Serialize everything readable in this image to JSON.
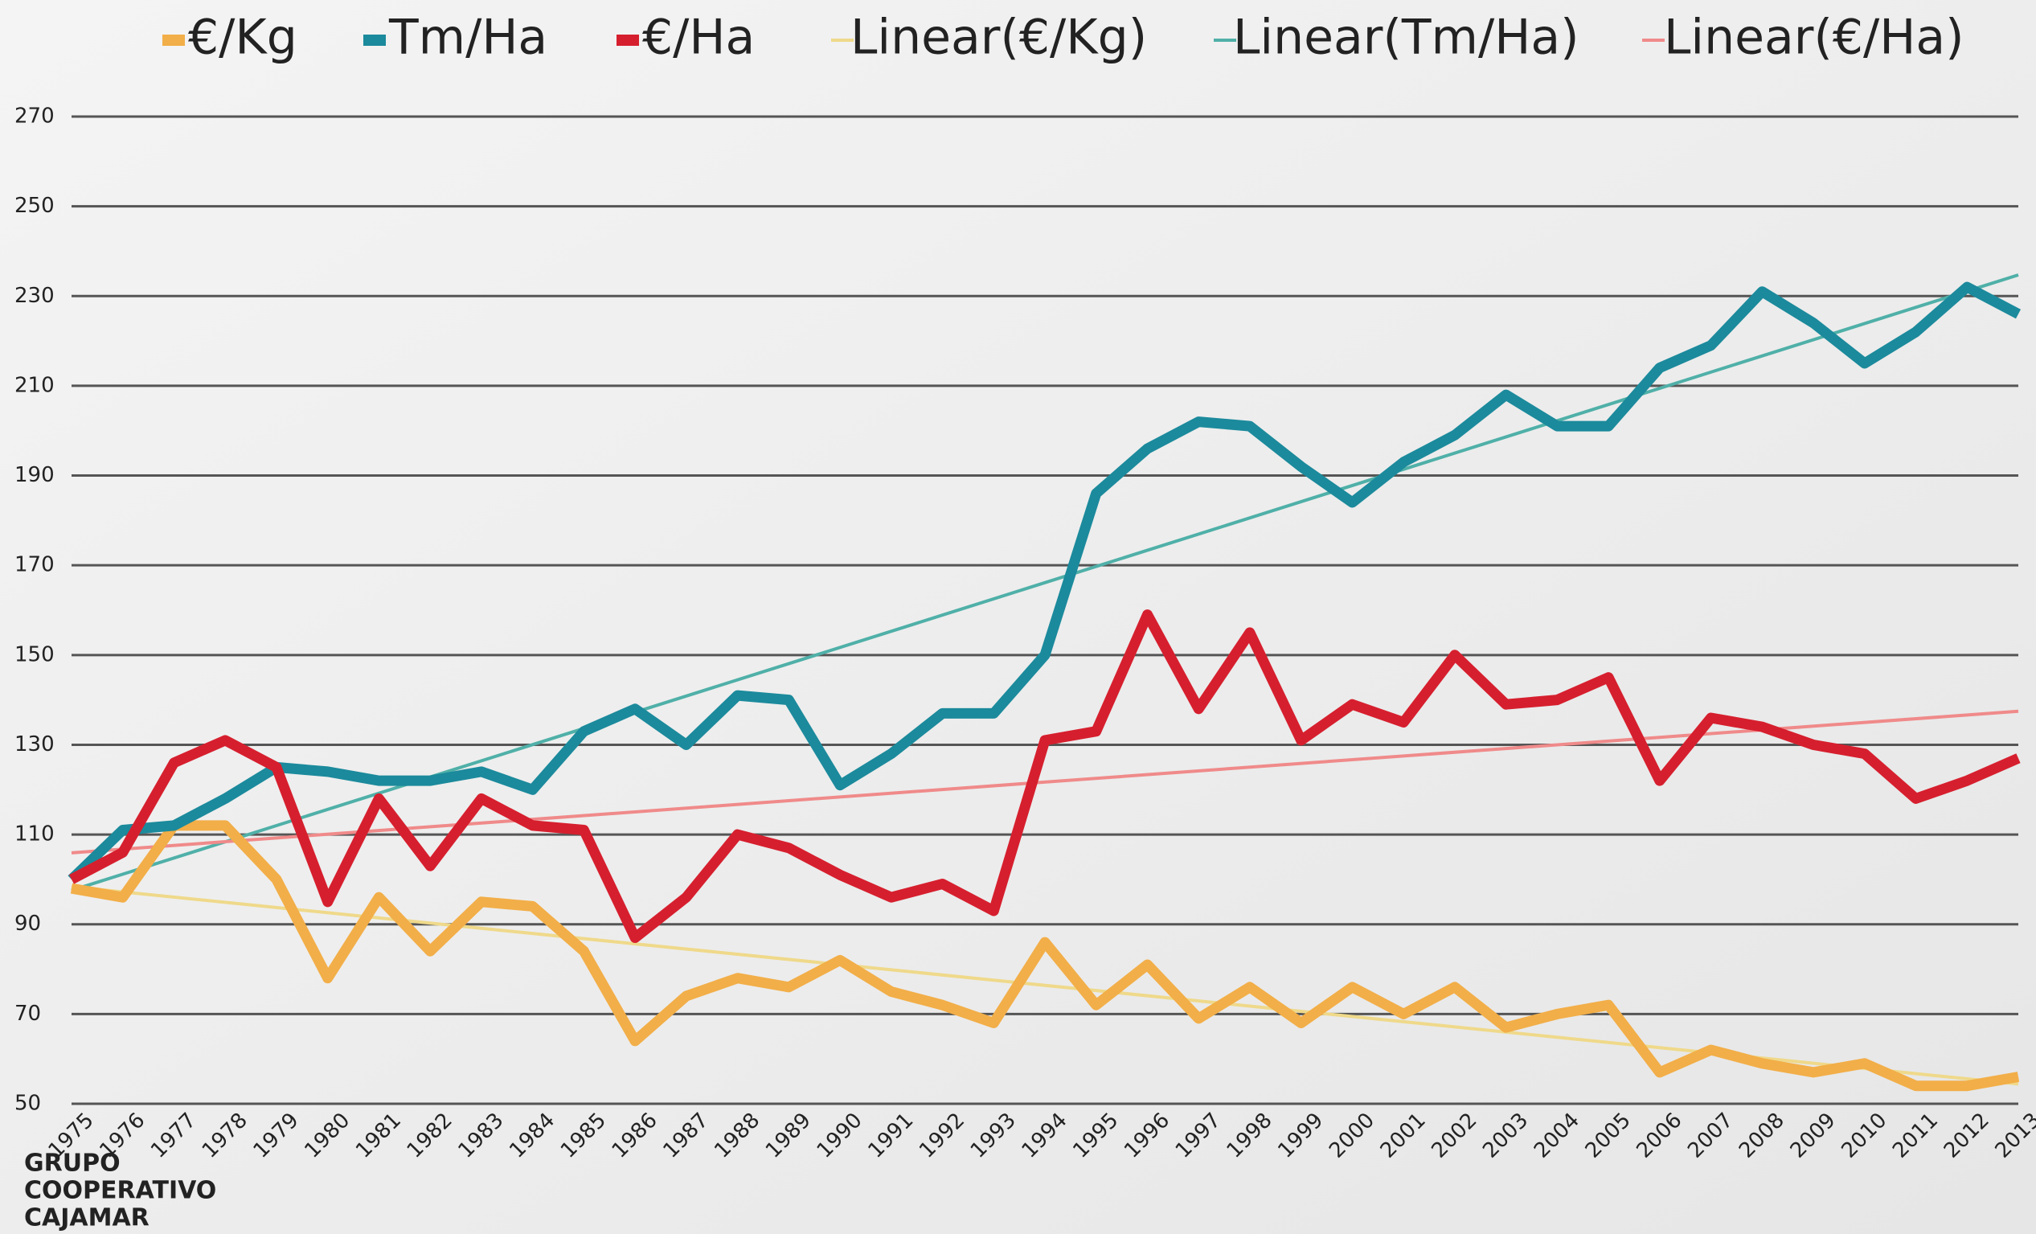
{
  "chart_data": {
    "type": "line",
    "categories": [
      "1975",
      "1976",
      "1977",
      "1978",
      "1979",
      "1980",
      "1981",
      "1982",
      "1983",
      "1984",
      "1985",
      "1986",
      "1987",
      "1988",
      "1989",
      "1990",
      "1991",
      "1992",
      "1993",
      "1994",
      "1995",
      "1996",
      "1997",
      "1998",
      "1999",
      "2000",
      "2001",
      "2002",
      "2003",
      "2004",
      "2005",
      "2006",
      "2007",
      "2008",
      "2009",
      "2010",
      "2011",
      "2012",
      "2013"
    ],
    "series": [
      {
        "name": "€/Kg",
        "color": "#f2ae48",
        "trendline": {
          "name": "Linear(€/Kg)",
          "color": "#efd98a"
        },
        "values": [
          98,
          96,
          112,
          112,
          100,
          78,
          96,
          84,
          95,
          94,
          84,
          64,
          74,
          78,
          76,
          82,
          75,
          72,
          68,
          86,
          72,
          81,
          69,
          76,
          68,
          76,
          70,
          76,
          67,
          70,
          72,
          57,
          62,
          59,
          57,
          59,
          54,
          54,
          56
        ]
      },
      {
        "name": "Tm/Ha",
        "color": "#1b8a9c",
        "trendline": {
          "name": "Linear(Tm/Ha)",
          "color": "#4fb0a8"
        },
        "values": [
          100,
          111,
          112,
          118,
          125,
          124,
          122,
          122,
          124,
          120,
          133,
          138,
          130,
          141,
          140,
          121,
          128,
          137,
          137,
          150,
          186,
          196,
          202,
          201,
          192,
          184,
          193,
          199,
          208,
          201,
          201,
          214,
          219,
          231,
          224,
          215,
          222,
          232,
          226
        ]
      },
      {
        "name": "€/Ha",
        "color": "#d61f2e",
        "trendline": {
          "name": "Linear(€/Ha)",
          "color": "#f08a8a"
        },
        "values": [
          100,
          106,
          126,
          131,
          125,
          95,
          118,
          103,
          118,
          112,
          111,
          87,
          96,
          110,
          107,
          101,
          96,
          99,
          93,
          131,
          133,
          159,
          138,
          155,
          131,
          139,
          135,
          150,
          139,
          140,
          145,
          122,
          136,
          134,
          130,
          128,
          118,
          122,
          127
        ]
      }
    ],
    "ylim": [
      50,
      270
    ],
    "yticks": [
      50,
      70,
      90,
      110,
      130,
      150,
      170,
      190,
      210,
      230,
      250,
      270
    ],
    "grid": true,
    "logo": [
      "GRUPO",
      "COOPERATIVO",
      "CAJAMAR"
    ]
  }
}
